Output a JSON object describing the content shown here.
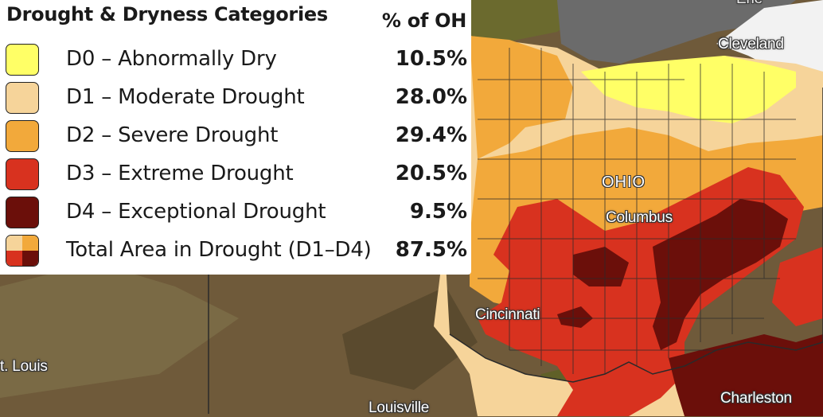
{
  "legend": {
    "title": "Drought & Dryness Categories",
    "column_header": "% of OH",
    "items": [
      {
        "label": "D0 – Abnormally Dry",
        "value": "10.5%",
        "color": "#ffff66"
      },
      {
        "label": "D1 – Moderate Drought",
        "value": "28.0%",
        "color": "#f6d49a"
      },
      {
        "label": "D2 – Severe Drought",
        "value": "29.4%",
        "color": "#f2a93b"
      },
      {
        "label": "D3 – Extreme Drought",
        "value": "20.5%",
        "color": "#d8321f"
      },
      {
        "label": "D4 – Exceptional Drought",
        "value": "9.5%",
        "color": "#6b0f0a"
      }
    ],
    "total": {
      "label": "Total Area in Drought (D1–D4)",
      "value": "87.5%"
    }
  },
  "map": {
    "state_label": "OHIO",
    "cities": {
      "cleveland": "Cleveland",
      "columbus": "Columbus",
      "cincinnati": "Cincinnati",
      "st_louis": "t. Louis",
      "louisville": "Louisville",
      "charleston": "Charleston",
      "erie": "Erie"
    },
    "colors": {
      "background": "#6f5a3a",
      "lake": "#6b6b6b",
      "dry": "#ffff66",
      "moderate": "#f6d49a",
      "severe": "#f2a93b",
      "extreme": "#d8321f",
      "exceptional": "#6b0f0a"
    }
  }
}
